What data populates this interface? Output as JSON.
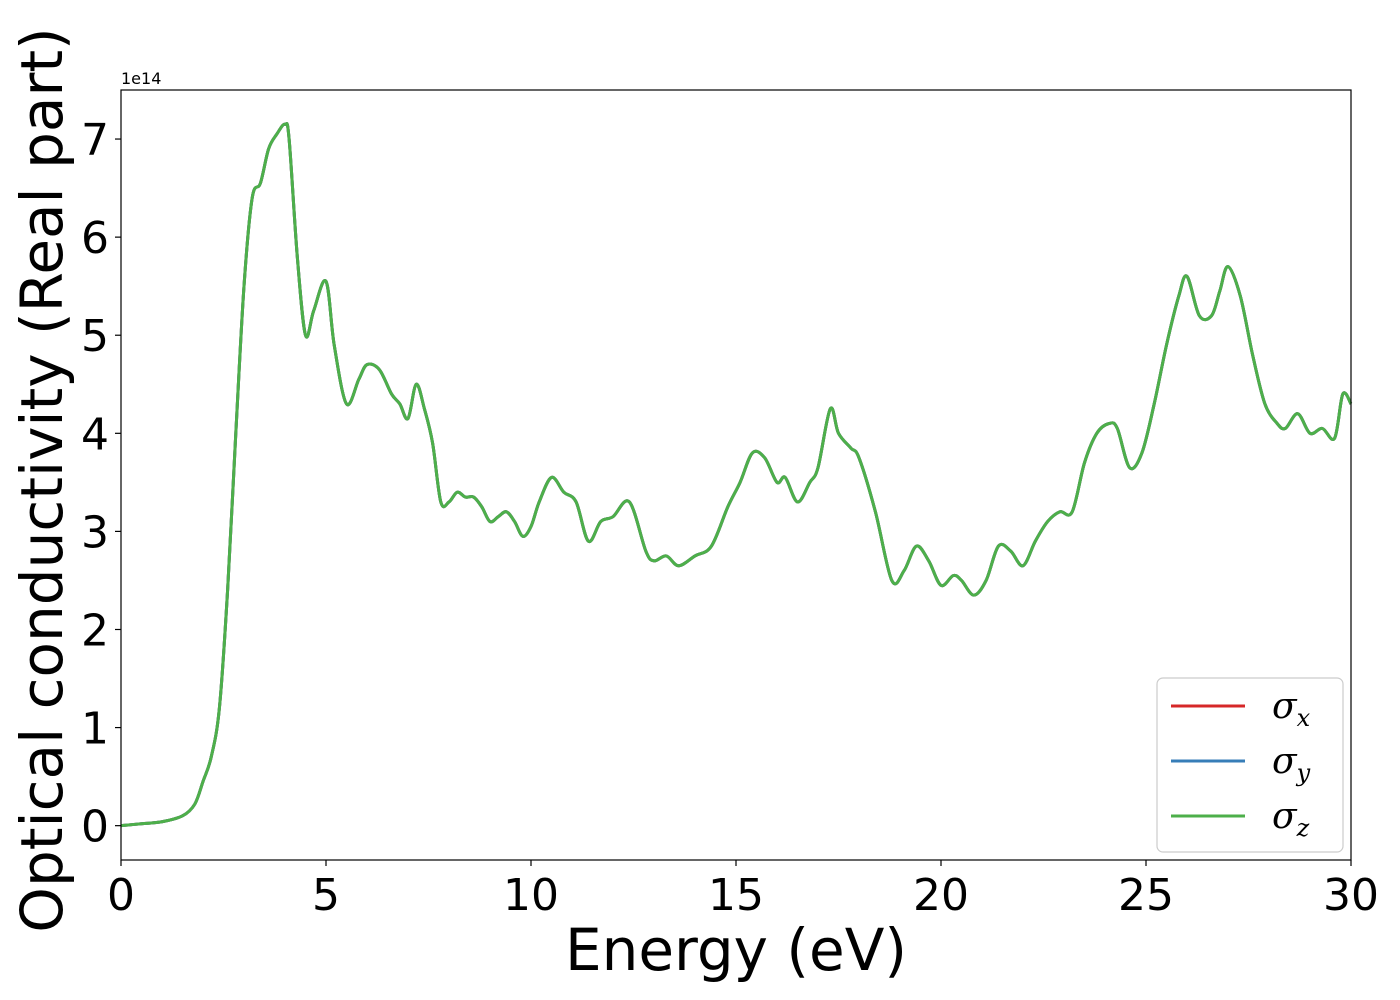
{
  "chart_data": {
    "type": "line",
    "xlabel": "Energy (eV)",
    "ylabel": "Optical conductivity (Real part)",
    "y_offset_label": "1e14",
    "xlim": [
      0,
      30
    ],
    "ylim": [
      -0.35,
      7.5
    ],
    "x_ticks": [
      0,
      5,
      10,
      15,
      20,
      25,
      30
    ],
    "y_ticks": [
      0,
      1,
      2,
      3,
      4,
      5,
      6,
      7
    ],
    "grid": false,
    "legend_position": "lower-right",
    "x": [
      0,
      0.5,
      1.0,
      1.5,
      1.8,
      2.0,
      2.2,
      2.4,
      2.6,
      2.8,
      3.0,
      3.2,
      3.4,
      3.6,
      3.8,
      4.0,
      4.1,
      4.3,
      4.5,
      4.7,
      5.0,
      5.2,
      5.5,
      5.8,
      6.0,
      6.3,
      6.6,
      6.8,
      7.0,
      7.2,
      7.4,
      7.6,
      7.8,
      8.0,
      8.2,
      8.4,
      8.6,
      8.8,
      9.0,
      9.2,
      9.4,
      9.6,
      9.8,
      10.0,
      10.2,
      10.5,
      10.8,
      11.1,
      11.4,
      11.7,
      12.0,
      12.4,
      12.8,
      13.0,
      13.3,
      13.6,
      14.0,
      14.4,
      14.8,
      15.1,
      15.4,
      15.7,
      16.0,
      16.2,
      16.5,
      16.8,
      17.0,
      17.3,
      17.5,
      17.8,
      18.0,
      18.4,
      18.8,
      19.1,
      19.4,
      19.7,
      20.0,
      20.3,
      20.5,
      20.8,
      21.1,
      21.4,
      21.7,
      22.0,
      22.3,
      22.6,
      22.9,
      23.2,
      23.5,
      23.8,
      24.1,
      24.3,
      24.6,
      24.9,
      25.2,
      25.5,
      25.8,
      26.0,
      26.3,
      26.6,
      26.8,
      27.0,
      27.3,
      27.6,
      27.9,
      28.2,
      28.4,
      28.7,
      29.0,
      29.3,
      29.6,
      29.8,
      30.0
    ],
    "series": [
      {
        "name": "σ_x",
        "color": "#d62728",
        "values": [
          0.0,
          0.02,
          0.04,
          0.1,
          0.22,
          0.45,
          0.7,
          1.2,
          2.4,
          4.0,
          5.5,
          6.4,
          6.55,
          6.9,
          7.05,
          7.15,
          7.0,
          5.8,
          5.0,
          5.25,
          5.55,
          4.9,
          4.3,
          4.55,
          4.7,
          4.65,
          4.4,
          4.3,
          4.15,
          4.5,
          4.25,
          3.9,
          3.3,
          3.3,
          3.4,
          3.35,
          3.35,
          3.25,
          3.1,
          3.15,
          3.2,
          3.1,
          2.95,
          3.05,
          3.3,
          3.55,
          3.4,
          3.3,
          2.9,
          3.1,
          3.15,
          3.3,
          2.8,
          2.7,
          2.75,
          2.65,
          2.75,
          2.85,
          3.25,
          3.5,
          3.8,
          3.75,
          3.5,
          3.55,
          3.3,
          3.5,
          3.65,
          4.25,
          4.0,
          3.85,
          3.75,
          3.2,
          2.5,
          2.6,
          2.85,
          2.7,
          2.45,
          2.55,
          2.5,
          2.35,
          2.5,
          2.85,
          2.8,
          2.65,
          2.9,
          3.1,
          3.2,
          3.2,
          3.7,
          4.0,
          4.1,
          4.05,
          3.65,
          3.8,
          4.3,
          4.9,
          5.4,
          5.6,
          5.2,
          5.2,
          5.45,
          5.7,
          5.4,
          4.8,
          4.3,
          4.1,
          4.05,
          4.2,
          4.0,
          4.05,
          3.95,
          4.4,
          4.3
        ]
      },
      {
        "name": "σ_y",
        "color": "#377eb8",
        "values": [
          0.0,
          0.02,
          0.04,
          0.1,
          0.22,
          0.45,
          0.7,
          1.2,
          2.4,
          4.0,
          5.5,
          6.4,
          6.55,
          6.9,
          7.05,
          7.15,
          7.0,
          5.8,
          5.0,
          5.25,
          5.55,
          4.9,
          4.3,
          4.55,
          4.7,
          4.65,
          4.4,
          4.3,
          4.15,
          4.5,
          4.25,
          3.9,
          3.3,
          3.3,
          3.4,
          3.35,
          3.35,
          3.25,
          3.1,
          3.15,
          3.2,
          3.1,
          2.95,
          3.05,
          3.3,
          3.55,
          3.4,
          3.3,
          2.9,
          3.1,
          3.15,
          3.3,
          2.8,
          2.7,
          2.75,
          2.65,
          2.75,
          2.85,
          3.25,
          3.5,
          3.8,
          3.75,
          3.5,
          3.55,
          3.3,
          3.5,
          3.65,
          4.25,
          4.0,
          3.85,
          3.75,
          3.2,
          2.5,
          2.6,
          2.85,
          2.7,
          2.45,
          2.55,
          2.5,
          2.35,
          2.5,
          2.85,
          2.8,
          2.65,
          2.9,
          3.1,
          3.2,
          3.2,
          3.7,
          4.0,
          4.1,
          4.05,
          3.65,
          3.8,
          4.3,
          4.9,
          5.4,
          5.6,
          5.2,
          5.2,
          5.45,
          5.7,
          5.4,
          4.8,
          4.3,
          4.1,
          4.05,
          4.2,
          4.0,
          4.05,
          3.95,
          4.4,
          4.3
        ]
      },
      {
        "name": "σ_z",
        "color": "#4daf4a",
        "values": [
          0.0,
          0.02,
          0.04,
          0.1,
          0.22,
          0.45,
          0.7,
          1.2,
          2.4,
          4.0,
          5.5,
          6.4,
          6.55,
          6.9,
          7.05,
          7.15,
          7.0,
          5.8,
          5.0,
          5.25,
          5.55,
          4.9,
          4.3,
          4.55,
          4.7,
          4.65,
          4.4,
          4.3,
          4.15,
          4.5,
          4.25,
          3.9,
          3.3,
          3.3,
          3.4,
          3.35,
          3.35,
          3.25,
          3.1,
          3.15,
          3.2,
          3.1,
          2.95,
          3.05,
          3.3,
          3.55,
          3.4,
          3.3,
          2.9,
          3.1,
          3.15,
          3.3,
          2.8,
          2.7,
          2.75,
          2.65,
          2.75,
          2.85,
          3.25,
          3.5,
          3.8,
          3.75,
          3.5,
          3.55,
          3.3,
          3.5,
          3.65,
          4.25,
          4.0,
          3.85,
          3.75,
          3.2,
          2.5,
          2.6,
          2.85,
          2.7,
          2.45,
          2.55,
          2.5,
          2.35,
          2.5,
          2.85,
          2.8,
          2.65,
          2.9,
          3.1,
          3.2,
          3.2,
          3.7,
          4.0,
          4.1,
          4.05,
          3.65,
          3.8,
          4.3,
          4.9,
          5.4,
          5.6,
          5.2,
          5.2,
          5.45,
          5.7,
          5.4,
          4.8,
          4.3,
          4.1,
          4.05,
          4.2,
          4.0,
          4.05,
          3.95,
          4.4,
          4.3
        ]
      }
    ],
    "legend": [
      {
        "symbol": "σ",
        "sub": "x",
        "color": "#d62728"
      },
      {
        "symbol": "σ",
        "sub": "y",
        "color": "#377eb8"
      },
      {
        "symbol": "σ",
        "sub": "z",
        "color": "#4daf4a"
      }
    ]
  }
}
